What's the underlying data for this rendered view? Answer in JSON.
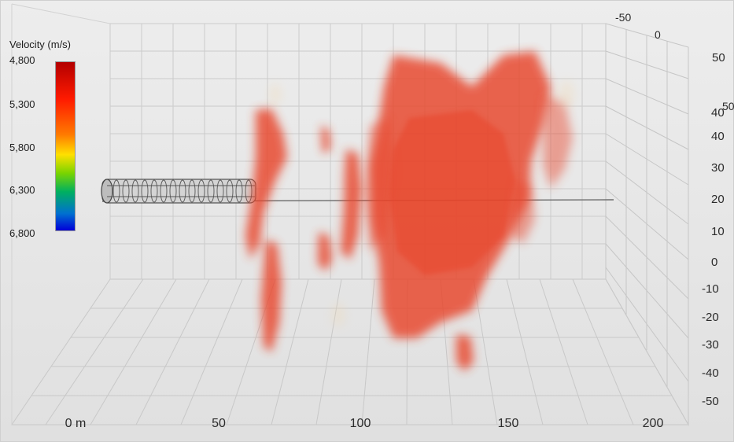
{
  "chart_data": {
    "type": "3d-volume",
    "legend": {
      "title": "Velocity (m/s)",
      "ticks": [
        "4,800",
        "5,300",
        "5,800",
        "6,300",
        "6,800"
      ],
      "colors": [
        "#b30000",
        "#ff1a00",
        "#ff7a00",
        "#ffe000",
        "#7ad400",
        "#00b060",
        "#0070d0",
        "#0000d8"
      ],
      "placement": "top-left"
    },
    "x_axis": {
      "tick_labels": [
        "0 m",
        "50",
        "100",
        "150",
        "200"
      ],
      "range": [
        0,
        200
      ]
    },
    "y_axis": {
      "tick_labels": [
        "50",
        "40",
        "30",
        "20",
        "10",
        "0",
        "-10",
        "-20",
        "-30",
        "-40",
        "-50"
      ],
      "range": [
        -50,
        50
      ]
    },
    "z_axis": {
      "tick_labels": [
        "-50",
        "0",
        "50",
        "50"
      ]
    },
    "volume_color": "#e8452a",
    "grid": true
  }
}
